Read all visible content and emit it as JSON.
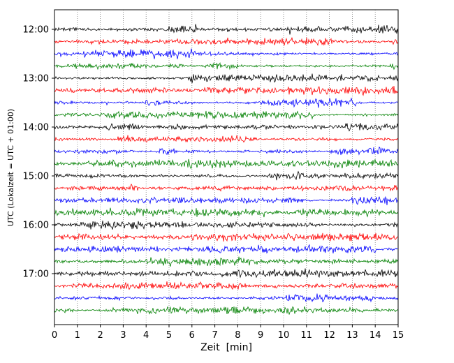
{
  "chart_data": {
    "type": "line",
    "subtype": "seismogram-dayplot",
    "title": "",
    "xlabel": "Zeit  [min]",
    "ylabel": "UTC (Lokalzeit = UTC + 01:00)",
    "xlim": [
      0,
      15
    ],
    "minutes_per_trace": 15,
    "x_ticks": [
      "0",
      "1",
      "2",
      "3",
      "4",
      "5",
      "6",
      "7",
      "8",
      "9",
      "10",
      "11",
      "12",
      "13",
      "14",
      "15"
    ],
    "y_ticks": [
      {
        "label": "12:00",
        "trace_index": 0
      },
      {
        "label": "13:00",
        "trace_index": 4
      },
      {
        "label": "14:00",
        "trace_index": 8
      },
      {
        "label": "15:00",
        "trace_index": 12
      },
      {
        "label": "16:00",
        "trace_index": 16
      },
      {
        "label": "17:00",
        "trace_index": 20
      }
    ],
    "grid": {
      "vertical_dotted_each_minute": true,
      "horizontal": false
    },
    "colors_cycle": [
      "#000000",
      "#ff0000",
      "#0000ff",
      "#008000"
    ],
    "traces": [
      {
        "start": "12:00",
        "color": "#000000"
      },
      {
        "start": "12:15",
        "color": "#ff0000"
      },
      {
        "start": "12:30",
        "color": "#0000ff"
      },
      {
        "start": "12:45",
        "color": "#008000"
      },
      {
        "start": "13:00",
        "color": "#000000"
      },
      {
        "start": "13:15",
        "color": "#ff0000"
      },
      {
        "start": "13:30",
        "color": "#0000ff"
      },
      {
        "start": "13:45",
        "color": "#008000"
      },
      {
        "start": "14:00",
        "color": "#000000"
      },
      {
        "start": "14:15",
        "color": "#ff0000"
      },
      {
        "start": "14:30",
        "color": "#0000ff"
      },
      {
        "start": "14:45",
        "color": "#008000"
      },
      {
        "start": "15:00",
        "color": "#000000"
      },
      {
        "start": "15:15",
        "color": "#ff0000"
      },
      {
        "start": "15:30",
        "color": "#0000ff"
      },
      {
        "start": "15:45",
        "color": "#008000"
      },
      {
        "start": "16:00",
        "color": "#000000"
      },
      {
        "start": "16:15",
        "color": "#ff0000"
      },
      {
        "start": "16:30",
        "color": "#0000ff"
      },
      {
        "start": "16:45",
        "color": "#008000"
      },
      {
        "start": "17:00",
        "color": "#000000"
      },
      {
        "start": "17:15",
        "color": "#ff0000"
      },
      {
        "start": "17:30",
        "color": "#0000ff"
      },
      {
        "start": "17:45",
        "color": "#008000"
      }
    ],
    "note": "continuous seismic background noise; amplitudes not individually labeled"
  }
}
